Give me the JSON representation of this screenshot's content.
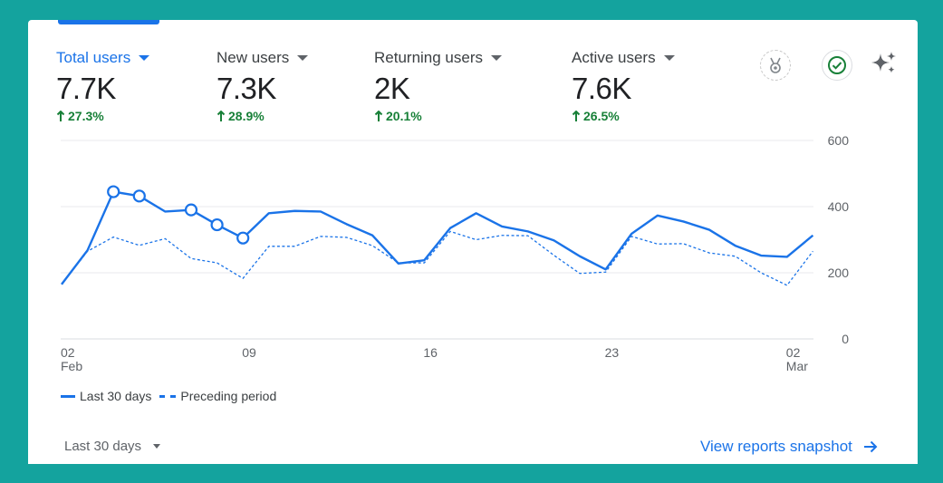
{
  "metrics": [
    {
      "label": "Total users",
      "value": "7.7K",
      "change": "27.3%",
      "selected": true
    },
    {
      "label": "New users",
      "value": "7.3K",
      "change": "28.9%",
      "selected": false
    },
    {
      "label": "Returning users",
      "value": "2K",
      "change": "20.1%",
      "selected": false
    },
    {
      "label": "Active users",
      "value": "7.6K",
      "change": "26.5%",
      "selected": false
    }
  ],
  "icons": {
    "medal": "medal-icon",
    "check": "check-circle-icon",
    "sparkle": "sparkle-icon",
    "arrow": "arrow-right-icon"
  },
  "colors": {
    "accent": "#1a73e8",
    "positive": "#188038",
    "background": "#14a39e"
  },
  "legend": {
    "current": "Last 30 days",
    "previous": "Preceding period"
  },
  "footer": {
    "range": "Last 30 days",
    "snapshot_link": "View reports snapshot"
  },
  "chart_data": {
    "type": "line",
    "y_ticks": [
      "600",
      "400",
      "200",
      "0"
    ],
    "ylim": [
      0,
      600
    ],
    "x_ticks": [
      {
        "day": 0,
        "line1": "02",
        "line2": "Feb"
      },
      {
        "day": 7,
        "line1": "09",
        "line2": ""
      },
      {
        "day": 14,
        "line1": "16",
        "line2": ""
      },
      {
        "day": 21,
        "line1": "23",
        "line2": ""
      },
      {
        "day": 28,
        "line1": "02",
        "line2": "Mar"
      }
    ],
    "xlim": [
      0,
      29
    ],
    "series": [
      {
        "name": "Last 30 days",
        "style": "solid",
        "values": [
          165,
          268,
          445,
          432,
          385,
          390,
          345,
          305,
          380,
          387,
          385,
          347,
          313,
          228,
          238,
          335,
          380,
          340,
          325,
          298,
          250,
          210,
          318,
          373,
          355,
          330,
          282,
          252,
          248,
          313
        ],
        "markers": [
          2,
          3,
          5,
          6,
          7
        ]
      },
      {
        "name": "Preceding period",
        "style": "dashed",
        "values": [
          165,
          265,
          308,
          283,
          303,
          243,
          230,
          183,
          280,
          280,
          310,
          307,
          282,
          230,
          230,
          325,
          300,
          313,
          312,
          253,
          198,
          202,
          310,
          287,
          288,
          260,
          250,
          200,
          162,
          265
        ],
        "markers": []
      }
    ]
  }
}
